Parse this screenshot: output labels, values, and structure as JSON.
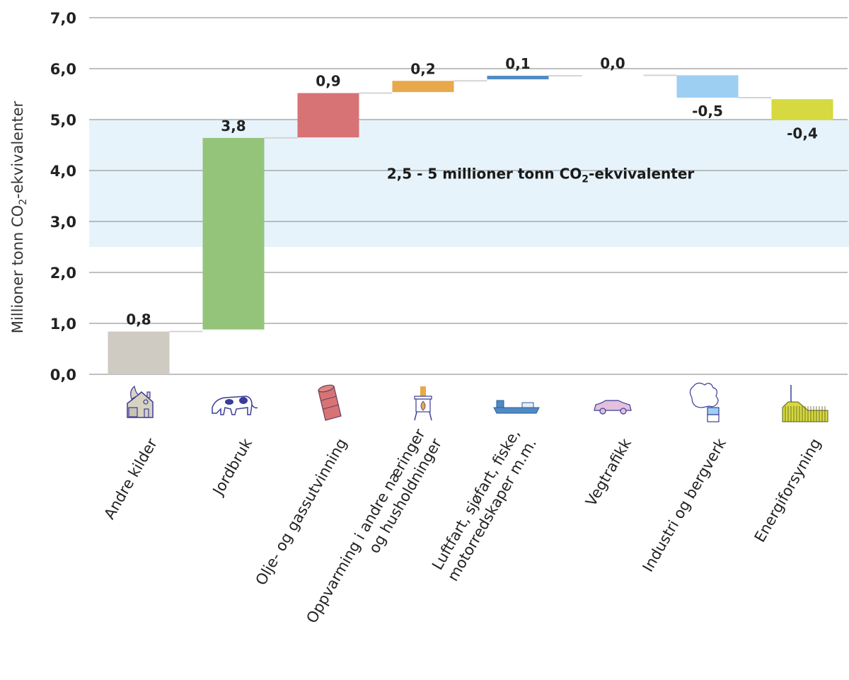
{
  "chart_data": {
    "type": "waterfall",
    "title": "",
    "ylabel_main": "Millioner tonn CO",
    "ylabel_sub": "2",
    "ylabel_tail": "-ekvivalenter",
    "ylim": [
      0,
      7
    ],
    "yticks": [
      "0,0",
      "1,0",
      "2,0",
      "3,0",
      "4,0",
      "5,0",
      "6,0",
      "7,0"
    ],
    "ytick_values": [
      0,
      1,
      2,
      3,
      4,
      5,
      6,
      7
    ],
    "grid": true,
    "band": {
      "from": 2.5,
      "to": 5.0,
      "color": "#e6f3fb",
      "label_main": "2,5 - 5 millioner tonn CO",
      "label_sub": "2",
      "label_tail": "-ekvivalenter"
    },
    "categories": [
      {
        "name": "Andre kilder",
        "lines": [
          "Andre kilder"
        ],
        "icon": "house-fire-icon",
        "value_label": "0,8",
        "start": 0.0,
        "end": 0.84,
        "color": "#cfcbc3"
      },
      {
        "name": "Jordbruk",
        "lines": [
          "Jordbruk"
        ],
        "icon": "cow-icon",
        "value_label": "3,8",
        "start": 0.88,
        "end": 4.64,
        "color": "#93c47a"
      },
      {
        "name": "Olje- og gassutvinning",
        "lines": [
          "Olje- og gassutvinning"
        ],
        "icon": "oil-barrel-icon",
        "value_label": "0,9",
        "start": 4.65,
        "end": 5.52,
        "color": "#d77375"
      },
      {
        "name": "Oppvarming i andre næringer og husholdninger",
        "lines": [
          "Oppvarming i andre næringer",
          "og husholdninger"
        ],
        "icon": "stove-icon",
        "value_label": "0,2",
        "start": 5.54,
        "end": 5.76,
        "color": "#e8a94a"
      },
      {
        "name": "Luftfart, sjøfart, fiske, motorredskaper m.m.",
        "lines": [
          "Luftfart, sjøfart, fiske,",
          "motorredskaper m.m."
        ],
        "icon": "ship-icon",
        "value_label": "0,1",
        "start": 5.79,
        "end": 5.86,
        "color": "#4f8ac4"
      },
      {
        "name": "Vegtrafikk",
        "lines": [
          "Vegtrafikk"
        ],
        "icon": "car-icon",
        "value_label": "0,0",
        "start": 5.87,
        "end": 5.87,
        "color": "#c9a8d9"
      },
      {
        "name": "Industri og bergverk",
        "lines": [
          "Industri og bergverk"
        ],
        "icon": "factory-smoke-icon",
        "value_label": "-0,5",
        "start": 5.87,
        "end": 5.43,
        "color": "#9dcff2"
      },
      {
        "name": "Energiforsyning",
        "lines": [
          "Energiforsyning"
        ],
        "icon": "power-plant-icon",
        "value_label": "-0,4",
        "start": 5.4,
        "end": 4.99,
        "color": "#d6d93f"
      }
    ]
  }
}
